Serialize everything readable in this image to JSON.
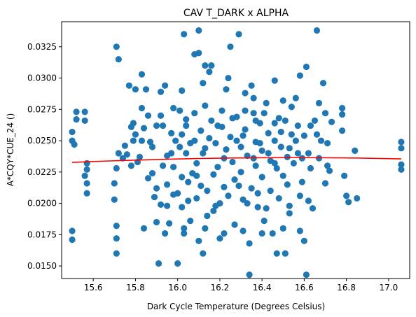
{
  "chart_data": {
    "type": "scatter",
    "title": "CAV T_DARK x ALPHA",
    "xlabel": "Dark Cycle Temperature (Degrees Celsius)",
    "ylabel": "A*CQY*CUE_24 ()",
    "xlim": [
      15.45,
      17.1
    ],
    "ylim": [
      0.014,
      0.0345
    ],
    "xticks": [
      15.6,
      15.8,
      16.0,
      16.2,
      16.4,
      16.6,
      16.8,
      17.0
    ],
    "xtick_labels": [
      "15.6",
      "15.8",
      "16.0",
      "16.2",
      "16.4",
      "16.6",
      "16.8",
      "17.0"
    ],
    "yticks": [
      0.015,
      0.0175,
      0.02,
      0.0225,
      0.025,
      0.0275,
      0.03,
      0.0325
    ],
    "ytick_labels": [
      "0.0150",
      "0.0175",
      "0.0200",
      "0.0225",
      "0.0250",
      "0.0275",
      "0.0300",
      "0.0325"
    ],
    "grid": false,
    "point_color": "#1f77b4",
    "fit_color": "#ff0000",
    "points": [
      [
        15.5,
        0.0257
      ],
      [
        15.5,
        0.025
      ],
      [
        15.51,
        0.0247
      ],
      [
        15.52,
        0.0273
      ],
      [
        15.52,
        0.0267
      ],
      [
        15.5,
        0.0178
      ],
      [
        15.5,
        0.0171
      ],
      [
        15.56,
        0.0273
      ],
      [
        15.56,
        0.0266
      ],
      [
        15.57,
        0.0232
      ],
      [
        15.57,
        0.0227
      ],
      [
        15.56,
        0.0222
      ],
      [
        15.57,
        0.0216
      ],
      [
        15.57,
        0.0208
      ],
      [
        15.7,
        0.0216
      ],
      [
        15.7,
        0.0203
      ],
      [
        15.71,
        0.0182
      ],
      [
        15.71,
        0.0172
      ],
      [
        15.71,
        0.016
      ],
      [
        15.71,
        0.0325
      ],
      [
        15.72,
        0.0315
      ],
      [
        15.71,
        0.0228
      ],
      [
        15.72,
        0.024
      ],
      [
        15.74,
        0.0236
      ],
      [
        15.75,
        0.0246
      ],
      [
        15.76,
        0.0239
      ],
      [
        15.77,
        0.0294
      ],
      [
        15.78,
        0.0261
      ],
      [
        15.79,
        0.025
      ],
      [
        15.79,
        0.0264
      ],
      [
        15.8,
        0.0291
      ],
      [
        15.8,
        0.0255
      ],
      [
        15.81,
        0.0233
      ],
      [
        15.82,
        0.0237
      ],
      [
        15.83,
        0.0303
      ],
      [
        15.83,
        0.0276
      ],
      [
        15.84,
        0.026
      ],
      [
        15.85,
        0.0291
      ],
      [
        15.86,
        0.027
      ],
      [
        15.87,
        0.0249
      ],
      [
        15.88,
        0.0224
      ],
      [
        15.89,
        0.0205
      ],
      [
        15.9,
        0.0185
      ],
      [
        15.91,
        0.0152
      ],
      [
        15.92,
        0.0199
      ],
      [
        15.92,
        0.0289
      ],
      [
        15.93,
        0.0262
      ],
      [
        15.94,
        0.0294
      ],
      [
        15.95,
        0.0238
      ],
      [
        15.95,
        0.0215
      ],
      [
        15.96,
        0.0184
      ],
      [
        15.97,
        0.0256
      ],
      [
        15.98,
        0.0229
      ],
      [
        15.98,
        0.0207
      ],
      [
        15.99,
        0.025
      ],
      [
        16.0,
        0.0152
      ],
      [
        16.01,
        0.0274
      ],
      [
        16.01,
        0.0245
      ],
      [
        16.02,
        0.0221
      ],
      [
        16.02,
        0.0197
      ],
      [
        16.03,
        0.0335
      ],
      [
        16.03,
        0.018
      ],
      [
        16.04,
        0.0267
      ],
      [
        16.04,
        0.024
      ],
      [
        16.05,
        0.0217
      ],
      [
        16.06,
        0.0186
      ],
      [
        16.07,
        0.0224
      ],
      [
        16.08,
        0.0319
      ],
      [
        16.08,
        0.025
      ],
      [
        16.09,
        0.0232
      ],
      [
        16.09,
        0.0204
      ],
      [
        16.1,
        0.032
      ],
      [
        16.1,
        0.0338
      ],
      [
        16.1,
        0.017
      ],
      [
        16.11,
        0.0258
      ],
      [
        16.11,
        0.0214
      ],
      [
        16.12,
        0.016
      ],
      [
        16.13,
        0.031
      ],
      [
        16.13,
        0.0244
      ],
      [
        16.14,
        0.019
      ],
      [
        16.15,
        0.0305
      ],
      [
        16.16,
        0.031
      ],
      [
        16.16,
        0.0266
      ],
      [
        16.17,
        0.0223
      ],
      [
        16.17,
        0.0194
      ],
      [
        16.18,
        0.0248
      ],
      [
        16.19,
        0.0229
      ],
      [
        16.2,
        0.0172
      ],
      [
        16.2,
        0.02
      ],
      [
        16.21,
        0.0261
      ],
      [
        16.22,
        0.0236
      ],
      [
        16.22,
        0.0213
      ],
      [
        16.23,
        0.0291
      ],
      [
        16.24,
        0.03
      ],
      [
        16.25,
        0.0325
      ],
      [
        16.25,
        0.0253
      ],
      [
        16.26,
        0.0233
      ],
      [
        16.27,
        0.0219
      ],
      [
        16.27,
        0.0183
      ],
      [
        16.28,
        0.0269
      ],
      [
        16.29,
        0.0335
      ],
      [
        16.3,
        0.0245
      ],
      [
        16.3,
        0.0225
      ],
      [
        16.31,
        0.0203
      ],
      [
        16.32,
        0.0288
      ],
      [
        16.32,
        0.0259
      ],
      [
        16.33,
        0.0238
      ],
      [
        16.34,
        0.0143
      ],
      [
        16.34,
        0.0168
      ],
      [
        16.35,
        0.0212
      ],
      [
        16.35,
        0.0294
      ],
      [
        16.36,
        0.0272
      ],
      [
        16.37,
        0.0249
      ],
      [
        16.37,
        0.023
      ],
      [
        16.38,
        0.0197
      ],
      [
        16.39,
        0.0264
      ],
      [
        16.4,
        0.0242
      ],
      [
        16.4,
        0.0221
      ],
      [
        16.41,
        0.0186
      ],
      [
        16.42,
        0.028
      ],
      [
        16.43,
        0.0256
      ],
      [
        16.44,
        0.0234
      ],
      [
        16.44,
        0.021
      ],
      [
        16.45,
        0.0176
      ],
      [
        16.46,
        0.025
      ],
      [
        16.47,
        0.0228
      ],
      [
        16.47,
        0.016
      ],
      [
        16.48,
        0.0268
      ],
      [
        16.49,
        0.0245
      ],
      [
        16.5,
        0.0222
      ],
      [
        16.5,
        0.0282
      ],
      [
        16.51,
        0.016
      ],
      [
        16.52,
        0.0237
      ],
      [
        16.52,
        0.0215
      ],
      [
        16.53,
        0.0198
      ],
      [
        16.54,
        0.0277
      ],
      [
        16.54,
        0.0255
      ],
      [
        16.55,
        0.0232
      ],
      [
        16.56,
        0.0284
      ],
      [
        16.57,
        0.0262
      ],
      [
        16.57,
        0.024
      ],
      [
        16.58,
        0.0178
      ],
      [
        16.59,
        0.0217
      ],
      [
        16.6,
        0.0254
      ],
      [
        16.61,
        0.0143
      ],
      [
        16.61,
        0.0309
      ],
      [
        16.62,
        0.0202
      ],
      [
        16.62,
        0.024
      ],
      [
        16.63,
        0.0228
      ],
      [
        16.64,
        0.0196
      ],
      [
        16.65,
        0.0266
      ],
      [
        16.66,
        0.0255
      ],
      [
        16.66,
        0.0338
      ],
      [
        16.67,
        0.028
      ],
      [
        16.68,
        0.025
      ],
      [
        16.69,
        0.0296
      ],
      [
        16.7,
        0.0272
      ],
      [
        16.71,
        0.023
      ],
      [
        16.71,
        0.0248
      ],
      [
        16.72,
        0.0226
      ],
      [
        16.73,
        0.0265
      ],
      [
        16.78,
        0.0276
      ],
      [
        16.78,
        0.0271
      ],
      [
        16.78,
        0.0258
      ],
      [
        16.79,
        0.0222
      ],
      [
        16.8,
        0.0206
      ],
      [
        16.81,
        0.0201
      ],
      [
        16.84,
        0.0242
      ],
      [
        16.85,
        0.0204
      ],
      [
        17.06,
        0.0249
      ],
      [
        17.06,
        0.0244
      ],
      [
        17.06,
        0.0231
      ],
      [
        17.06,
        0.0227
      ],
      [
        15.83,
        0.025
      ],
      [
        15.88,
        0.0245
      ],
      [
        15.93,
        0.023
      ],
      [
        15.97,
        0.024
      ],
      [
        16.02,
        0.0255
      ],
      [
        16.06,
        0.0248
      ],
      [
        16.12,
        0.024
      ],
      [
        16.15,
        0.0252
      ],
      [
        16.19,
        0.0262
      ],
      [
        16.23,
        0.0243
      ],
      [
        16.28,
        0.025
      ],
      [
        16.31,
        0.0254
      ],
      [
        16.36,
        0.0236
      ],
      [
        16.39,
        0.0248
      ],
      [
        16.43,
        0.024
      ],
      [
        16.46,
        0.0232
      ],
      [
        16.49,
        0.0257
      ],
      [
        16.53,
        0.0244
      ],
      [
        16.56,
        0.025
      ],
      [
        16.59,
        0.0236
      ],
      [
        15.86,
        0.022
      ],
      [
        15.9,
        0.0212
      ],
      [
        15.95,
        0.0198
      ],
      [
        16.0,
        0.0208
      ],
      [
        16.05,
        0.0202
      ],
      [
        16.09,
        0.0222
      ],
      [
        16.14,
        0.021
      ],
      [
        16.18,
        0.0198
      ],
      [
        16.24,
        0.0206
      ],
      [
        16.29,
        0.0214
      ],
      [
        16.33,
        0.02
      ],
      [
        16.38,
        0.0208
      ],
      [
        16.42,
        0.0196
      ],
      [
        16.48,
        0.0204
      ],
      [
        16.53,
        0.0192
      ],
      [
        16.58,
        0.0206
      ],
      [
        15.92,
        0.027
      ],
      [
        15.98,
        0.0276
      ],
      [
        16.04,
        0.0262
      ],
      [
        16.08,
        0.0272
      ],
      [
        16.13,
        0.0278
      ],
      [
        16.21,
        0.0274
      ],
      [
        16.26,
        0.0268
      ],
      [
        16.32,
        0.0274
      ],
      [
        16.37,
        0.0266
      ],
      [
        16.41,
        0.0272
      ],
      [
        16.46,
        0.0264
      ],
      [
        16.51,
        0.0266
      ],
      [
        15.84,
        0.018
      ],
      [
        15.94,
        0.0176
      ],
      [
        16.03,
        0.0176
      ],
      [
        16.13,
        0.018
      ],
      [
        16.22,
        0.0176
      ],
      [
        16.31,
        0.0178
      ],
      [
        16.4,
        0.0176
      ],
      [
        16.5,
        0.018
      ],
      [
        16.6,
        0.017
      ],
      [
        16.63,
        0.0262
      ],
      [
        16.67,
        0.0236
      ],
      [
        16.7,
        0.0216
      ],
      [
        16.58,
        0.0302
      ],
      [
        16.46,
        0.0298
      ],
      [
        16.36,
        0.0284
      ],
      [
        16.12,
        0.0296
      ],
      [
        16.02,
        0.029
      ],
      [
        15.9,
        0.0262
      ],
      [
        15.78,
        0.023
      ]
    ],
    "fit_line": {
      "x": [
        15.5,
        15.65,
        15.8,
        15.95,
        16.1,
        16.25,
        16.4,
        16.55,
        16.7,
        16.85,
        17.06
      ],
      "y": [
        0.02327,
        0.02337,
        0.02345,
        0.02352,
        0.02358,
        0.02362,
        0.02364,
        0.02365,
        0.02364,
        0.02362,
        0.02355
      ]
    }
  }
}
